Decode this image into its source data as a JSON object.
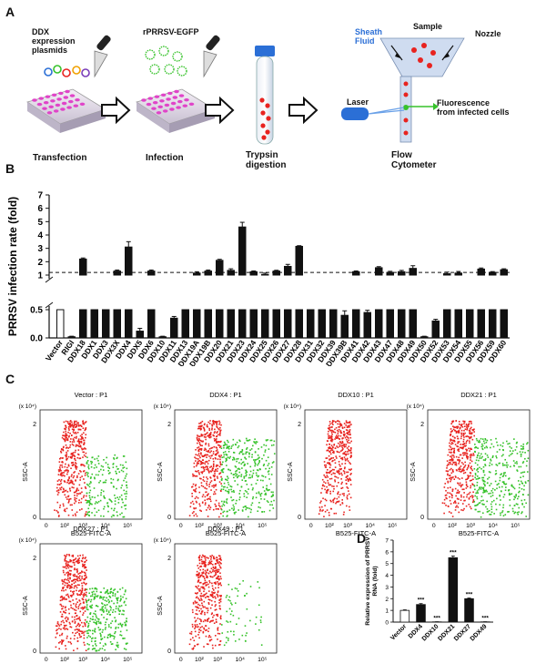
{
  "panels": {
    "A": "A",
    "B": "B",
    "C": "C",
    "D": "D"
  },
  "panel_a": {
    "ddx_label": "DDX\nexpression\nplasmids",
    "virus_label": "rPRRSV-EGFP",
    "sheath_label": "Sheath\nFluid",
    "sample_label": "Sample",
    "nozzle_label": "Nozzle",
    "laser_label": "Laser",
    "fluor_label": "Fluorescence\nfrom infected cells",
    "steps": {
      "transfection": "Transfection",
      "infection": "Infection",
      "trypsin": "Trypsin\ndigestion",
      "flow": "Flow\nCytometer"
    }
  },
  "chart_data": [
    {
      "type": "bar",
      "ylabel": "PRRSV infection rate (fold)",
      "y_ticks_upper": [
        "1",
        "2",
        "3",
        "4",
        "5",
        "6",
        "7"
      ],
      "y_ticks_lower": [
        "0.0",
        "0.5"
      ],
      "categories": [
        "Vector",
        "RIGI",
        "DDX18",
        "DDX1",
        "DDX3",
        "DDX3X",
        "DDX4",
        "DDX5",
        "DDX6",
        "DDX10",
        "DDX11",
        "DDX13",
        "DDX19A",
        "DDX19B",
        "DDX20",
        "DDX21",
        "DDX23",
        "DDX24",
        "DDX25",
        "DDX26",
        "DDX27",
        "DDX28",
        "DDX31",
        "DDX32",
        "DDX39",
        "DDX39B",
        "DDX41",
        "DDX42",
        "DDX43",
        "DDX47",
        "DDX48",
        "DDX49",
        "DDX50",
        "DDX52",
        "DDX53",
        "DDX54",
        "DDX55",
        "DDX56",
        "DDX59",
        "DDX60"
      ],
      "values": [
        1.0,
        0.02,
        2.2,
        0.95,
        0.85,
        1.3,
        3.1,
        0.12,
        1.3,
        0.02,
        0.35,
        0.6,
        1.15,
        1.3,
        2.1,
        1.35,
        4.6,
        1.25,
        1.05,
        1.3,
        1.65,
        3.15,
        0.6,
        0.85,
        0.9,
        0.4,
        1.25,
        0.45,
        1.55,
        1.2,
        1.25,
        1.5,
        0.02,
        0.3,
        1.1,
        1.15,
        0.6,
        1.45,
        1.2,
        1.4
      ],
      "errors": [
        0.05,
        0.01,
        0.08,
        0.06,
        0.1,
        0.08,
        0.4,
        0.05,
        0.08,
        0.01,
        0.03,
        0.05,
        0.1,
        0.08,
        0.08,
        0.12,
        0.35,
        0.06,
        0.1,
        0.06,
        0.15,
        0.05,
        0.05,
        0.1,
        0.1,
        0.08,
        0.06,
        0.04,
        0.08,
        0.08,
        0.1,
        0.2,
        0.01,
        0.03,
        0.12,
        0.12,
        0.06,
        0.08,
        0.06,
        0.07
      ],
      "reference_line": 1.2,
      "broken_axis": true
    },
    {
      "type": "bar",
      "ylabel": "Relative expression of PRRSV\nRNA (fold)",
      "categories": [
        "Vector",
        "DDX4",
        "DDX10",
        "DDX21",
        "DDX27",
        "DDX49"
      ],
      "values": [
        1.0,
        1.5,
        0.02,
        5.5,
        2.0,
        0.02
      ],
      "errors": [
        0.05,
        0.08,
        0.01,
        0.15,
        0.06,
        0.01
      ],
      "significance": [
        "",
        "***",
        "***",
        "***",
        "***",
        "***"
      ],
      "y_ticks": [
        "0",
        "1",
        "2",
        "3",
        "4",
        "5",
        "6",
        "7"
      ],
      "ylim": [
        0,
        7
      ]
    }
  ],
  "flow_plots": [
    {
      "title": "Vector : P1",
      "gate": 0.45,
      "green": 0.55
    },
    {
      "title": "DDX4 : P1",
      "gate": 0.45,
      "green": 1.0
    },
    {
      "title": "DDX10 : P1",
      "gate": 0.45,
      "green": 0.0
    },
    {
      "title": "DDX21 : P1",
      "gate": 0.45,
      "green": 1.0
    },
    {
      "title": "DDX27 : P1",
      "gate": 0.45,
      "green": 0.85
    },
    {
      "title": "DDX49 : P1",
      "gate": 0.45,
      "green": 0.1
    }
  ],
  "flow_axes": {
    "xlabel": "B525-FITC-A",
    "ylabel": "SSC-A",
    "yexp": "(x 10⁴)",
    "xticks": [
      "0",
      "10²",
      "10³",
      "10⁴",
      "10⁵"
    ],
    "ytop": "2",
    "ybottom": "0"
  },
  "colors": {
    "red": "#e8231f",
    "green": "#36c22a",
    "bar": "#111111",
    "blue": "#2b6fd6",
    "pink": "#e044c8"
  }
}
